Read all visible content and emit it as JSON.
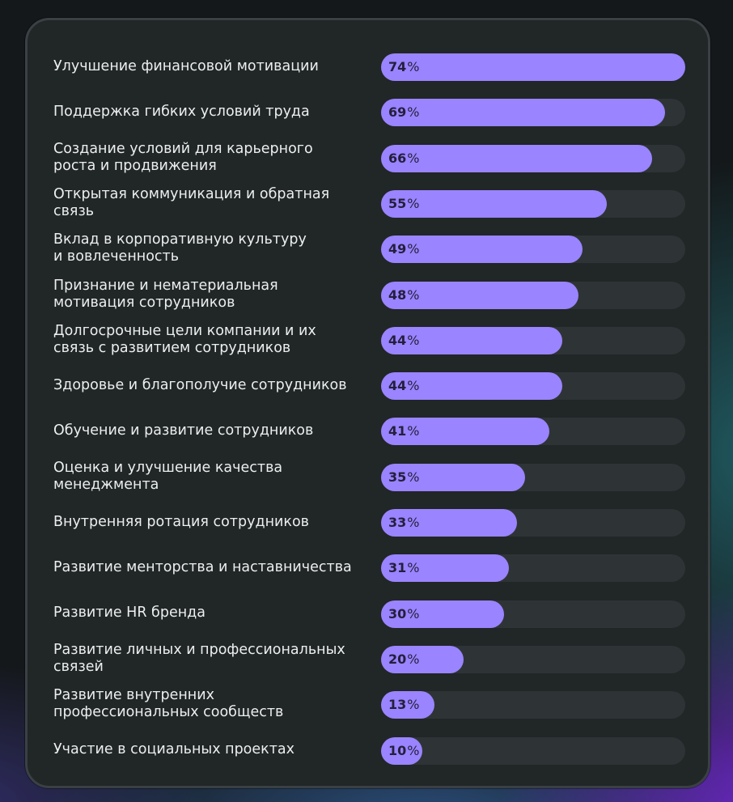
{
  "chart_data": {
    "type": "bar",
    "orientation": "horizontal",
    "unit": "%",
    "xlim": [
      0,
      74
    ],
    "bar_color": "#9a84ff",
    "track_color": "#2e3436",
    "categories": [
      "Улучшение финансовой мотивации",
      "Поддержка гибких условий труда",
      "Создание условий для карьерного\nроста и продвижения",
      "Открытая коммуникация и обратная\nсвязь",
      "Вклад в корпоративную культуру\nи вовлеченность",
      "Признание и нематериальная\nмотивация сотрудников",
      "Долгосрочные цели компании и их\nсвязь с развитием сотрудников",
      "Здоровье и благополучие сотрудников",
      "Обучение и развитие сотрудников",
      "Оценка и улучшение качества\nменеджмента",
      "Внутренняя ротация сотрудников",
      "Развитие менторства и наставничества",
      "Развитие HR бренда",
      "Развитие личных и профессиональных\nсвязей",
      "Развитие внутренних\nпрофессиональных сообществ",
      "Участие в социальных проектах"
    ],
    "values": [
      74,
      69,
      66,
      55,
      49,
      48,
      44,
      44,
      41,
      35,
      33,
      31,
      30,
      20,
      13,
      10
    ]
  }
}
